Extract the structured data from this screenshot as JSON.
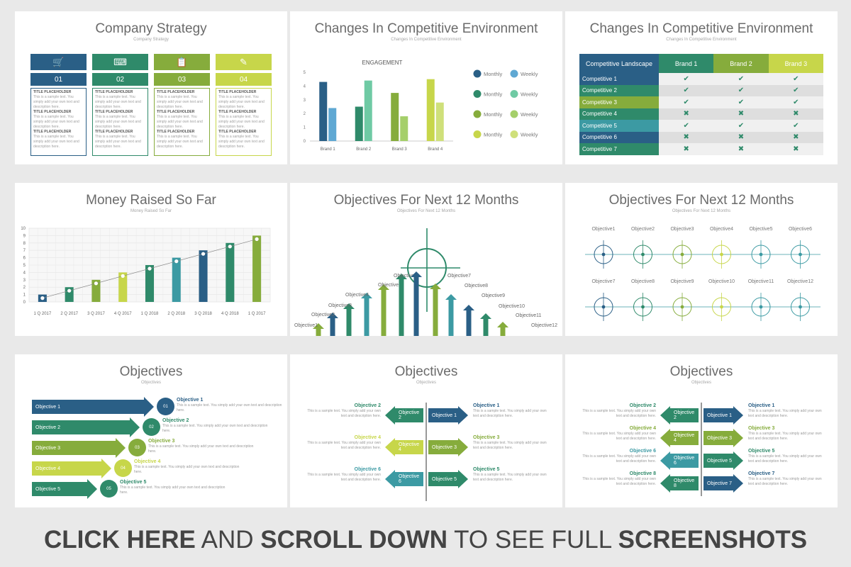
{
  "slides": {
    "s1": {
      "title": "Company Strategy",
      "subtitle": "Company Strategy",
      "columns": [
        {
          "num": "01",
          "icon": "cart-icon"
        },
        {
          "num": "02",
          "icon": "keyboard-icon"
        },
        {
          "num": "03",
          "icon": "clipboard-icon"
        },
        {
          "num": "04",
          "icon": "pen-icon"
        }
      ],
      "placeholder_title": "TITLE PLACEHOLDER",
      "placeholder_text": "This is a sample text. You simply add your own text and description here."
    },
    "s2": {
      "title": "Changes In Competitive Environment",
      "subtitle": "Changes In Competitive Environment",
      "legend": [
        {
          "a": "Monthly",
          "b": "Weekly"
        },
        {
          "a": "Monthly",
          "b": "Weekly"
        },
        {
          "a": "Monthly",
          "b": "Weekly"
        },
        {
          "a": "Monthly",
          "b": "Weekly"
        }
      ]
    },
    "s3": {
      "title": "Changes In Competitive Environment",
      "subtitle": "Changes In Competitive Environment",
      "headers": [
        "Competitive Landscape",
        "Brand 1",
        "Brand 2",
        "Brand 3"
      ],
      "rows": [
        {
          "label": "Competitive 1",
          "vals": [
            "✔",
            "✔",
            "✔"
          ]
        },
        {
          "label": "Competitive 2",
          "vals": [
            "✔",
            "✔",
            "✔"
          ]
        },
        {
          "label": "Competitive 3",
          "vals": [
            "✔",
            "✔",
            "✔"
          ]
        },
        {
          "label": "Competitive 4",
          "vals": [
            "✖",
            "✖",
            "✖"
          ]
        },
        {
          "label": "Competitive 5",
          "vals": [
            "✔",
            "✔",
            "✔"
          ]
        },
        {
          "label": "Competitive 6",
          "vals": [
            "✖",
            "✖",
            "✖"
          ]
        },
        {
          "label": "Competitive 7",
          "vals": [
            "✖",
            "✖",
            "✖"
          ]
        }
      ]
    },
    "s4": {
      "title": "Money Raised  So Far",
      "subtitle": "Money Raised  So Far"
    },
    "s5": {
      "title": "Objectives For Next 12 Months",
      "subtitle": "Objectives For Next 12 Months",
      "labels": [
        "Objective1",
        "Objective2",
        "Objective3",
        "Objective4",
        "Objective5",
        "Objective6",
        "Objective7",
        "Objective8",
        "Objective9",
        "Objective10",
        "Objective11",
        "Objective12"
      ]
    },
    "s6": {
      "title": "Objectives For Next 12 Months",
      "subtitle": "Objectives For Next 12 Months",
      "labels": [
        "Objective1",
        "Objective2",
        "Objective3",
        "Objective4",
        "Objective5",
        "Objective6",
        "Objective7",
        "Objective8",
        "Objective9",
        "Objective10",
        "Objective11",
        "Objective12"
      ]
    },
    "s7": {
      "title": "Objectives",
      "subtitle": "Objectives",
      "items": [
        {
          "arrow": "Objective 1",
          "num": "01",
          "title": "Objective 1"
        },
        {
          "arrow": "Objective 2",
          "num": "02",
          "title": "Objective 2"
        },
        {
          "arrow": "Objective 3",
          "num": "03",
          "title": "Objective 3"
        },
        {
          "arrow": "Objective 4",
          "num": "04",
          "title": "Objective 4"
        },
        {
          "arrow": "Objective 5",
          "num": "05",
          "title": "Objective 5"
        }
      ],
      "desc": "This is a sample text. You simply add your own text and description here."
    },
    "s8": {
      "title": "Objectives",
      "subtitle": "Objectives",
      "left": [
        "Objective 2",
        "Objective 4",
        "Objective 6"
      ],
      "right": [
        "Objective 1",
        "Objective 3",
        "Objective 5"
      ],
      "desc": "This is a sample text. You simply add your own text and description here."
    },
    "s9": {
      "title": "Objectives",
      "subtitle": "Objectives",
      "left": [
        "Objective 2",
        "Objective 4",
        "Objective 6",
        "Objective 8"
      ],
      "right": [
        "Objective 1",
        "Objective 3",
        "Objective 5",
        "Objective 7"
      ],
      "desc": "This is a sample text. You simply add your own text and description here."
    }
  },
  "chart_data": [
    {
      "type": "bar",
      "title": "ENGAGEMENT",
      "categories": [
        "Brand 1",
        "Brand 2",
        "Brand 3",
        "Brand 4"
      ],
      "series": [
        {
          "name": "Monthly",
          "values": [
            4.3,
            2.5,
            3.5,
            4.5
          ]
        },
        {
          "name": "Weekly",
          "values": [
            2.4,
            4.4,
            1.8,
            2.8
          ]
        }
      ],
      "ylim": [
        0,
        5
      ],
      "yticks": [
        0,
        1,
        2,
        3,
        4,
        5
      ],
      "xlabel": "",
      "ylabel": ""
    },
    {
      "type": "bar",
      "categories": [
        "1 Q 2017",
        "2 Q 2017",
        "3 Q 2017",
        "4 Q 2017",
        "1 Q 2018",
        "2 Q 2018",
        "3 Q 2018",
        "4 Q 2018",
        "1 Q 2017"
      ],
      "values": [
        1,
        2,
        3,
        4,
        5,
        6,
        7,
        8,
        9
      ],
      "ylim": [
        0,
        10
      ],
      "yticks": [
        0,
        1,
        2,
        3,
        4,
        5,
        6,
        7,
        8,
        9,
        10
      ],
      "grid": true,
      "xlabel": "",
      "ylabel": ""
    }
  ],
  "colors": {
    "c1": "#2a5f86",
    "c2": "#2f8a6a",
    "c3": "#86ac3c",
    "c4": "#c7d64a",
    "teal": "#3c9aa3",
    "lightblue": "#5fa8d3",
    "mint": "#6fcaa4",
    "lime": "#cfe07a"
  },
  "footer": {
    "a": "CLICK HERE",
    "b": " AND ",
    "c": "SCROLL DOWN",
    "d": " TO SEE FULL ",
    "e": "SCREENSHOTS"
  }
}
